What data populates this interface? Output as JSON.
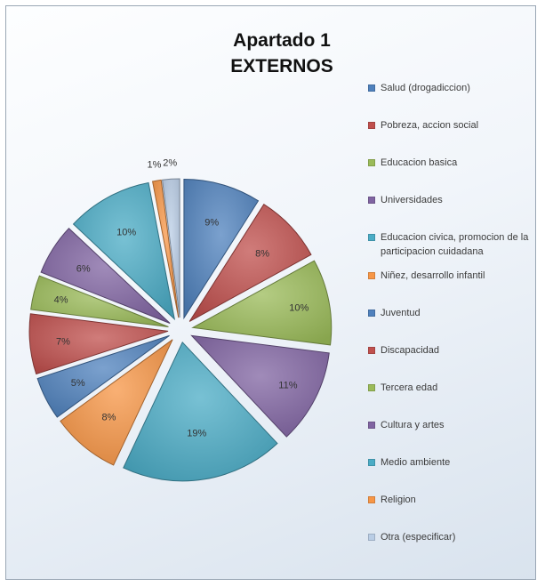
{
  "chart_data": {
    "type": "pie",
    "title": [
      "Apartado 1",
      "EXTERNOS"
    ],
    "legend_position": "right",
    "slices": [
      {
        "label": "Salud (drogadiccion)",
        "value": 9,
        "color": "#4f81bd"
      },
      {
        "label": "Pobreza, accion social",
        "value": 8,
        "color": "#c0504d"
      },
      {
        "label": "Educacion basica",
        "value": 10,
        "color": "#9bbb59"
      },
      {
        "label": "Universidades",
        "value": 11,
        "color": "#8064a2"
      },
      {
        "label": "Medio ambiente",
        "value": 19,
        "color": "#4bacc6"
      },
      {
        "label": "Niñez, desarrollo infantil",
        "value": 8,
        "color": "#f79646"
      },
      {
        "label": "Juventud",
        "value": 5,
        "color": "#4f81bd"
      },
      {
        "label": "Discapacidad",
        "value": 7,
        "color": "#c0504d"
      },
      {
        "label": "Tercera edad",
        "value": 4,
        "color": "#9bbb59"
      },
      {
        "label": "Cultura y artes",
        "value": 6,
        "color": "#8064a2"
      },
      {
        "label": "Educacion civica, promocion de la participacion cuidadana",
        "value": 10,
        "color": "#4bacc6"
      },
      {
        "label": "Religion",
        "value": 1,
        "color": "#f79646"
      },
      {
        "label": "Otra (especificar)",
        "value": 2,
        "color": "#b9cde5"
      }
    ],
    "data_labels": [
      "9%",
      "8%",
      "10%",
      "11%",
      "19%",
      "8%",
      "5%",
      "7%",
      "4%",
      "6%",
      "10%",
      "1%",
      "2%"
    ],
    "legend_order": [
      0,
      1,
      2,
      3,
      10,
      5,
      6,
      7,
      8,
      9,
      4,
      11,
      12
    ]
  }
}
